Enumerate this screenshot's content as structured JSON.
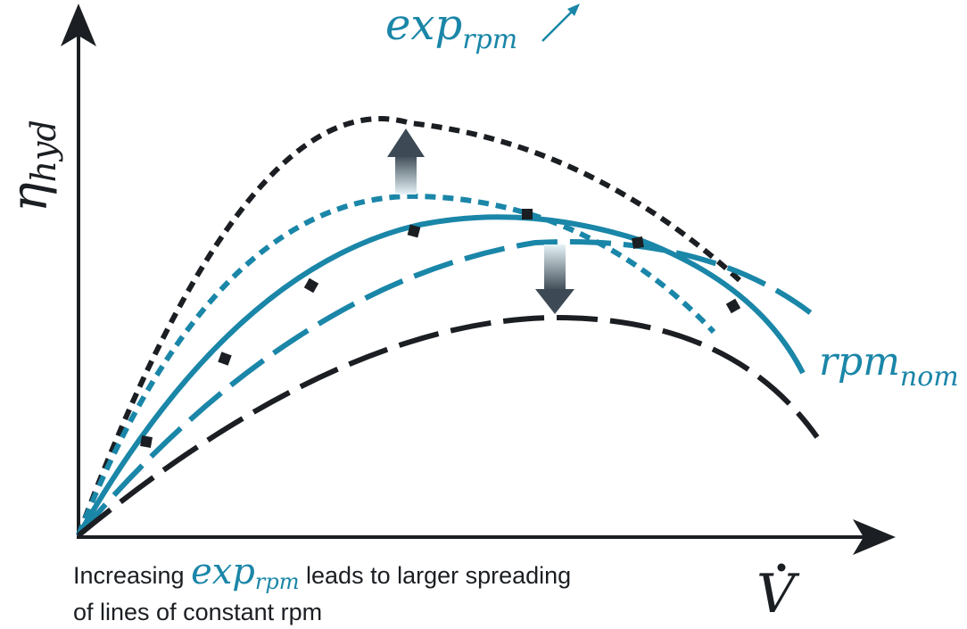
{
  "labels": {
    "y_axis": "η",
    "y_axis_sub": "hyd",
    "x_axis": "V",
    "exp_rpm_main": "exp",
    "exp_rpm_sub": "rpm",
    "rpm_nom_main": "rpm",
    "rpm_nom_sub": "nom"
  },
  "caption": {
    "before": "Increasing ",
    "math_main": "exp",
    "math_sub": "rpm",
    "after": " leads to larger spreading",
    "line2": "of lines of constant rpm"
  },
  "colors": {
    "dark": "#1b1e22",
    "teal": "#1a86a8"
  },
  "icons": [
    "up-arrow-icon",
    "down-arrow-icon",
    "diagonal-arrow-icon"
  ]
}
